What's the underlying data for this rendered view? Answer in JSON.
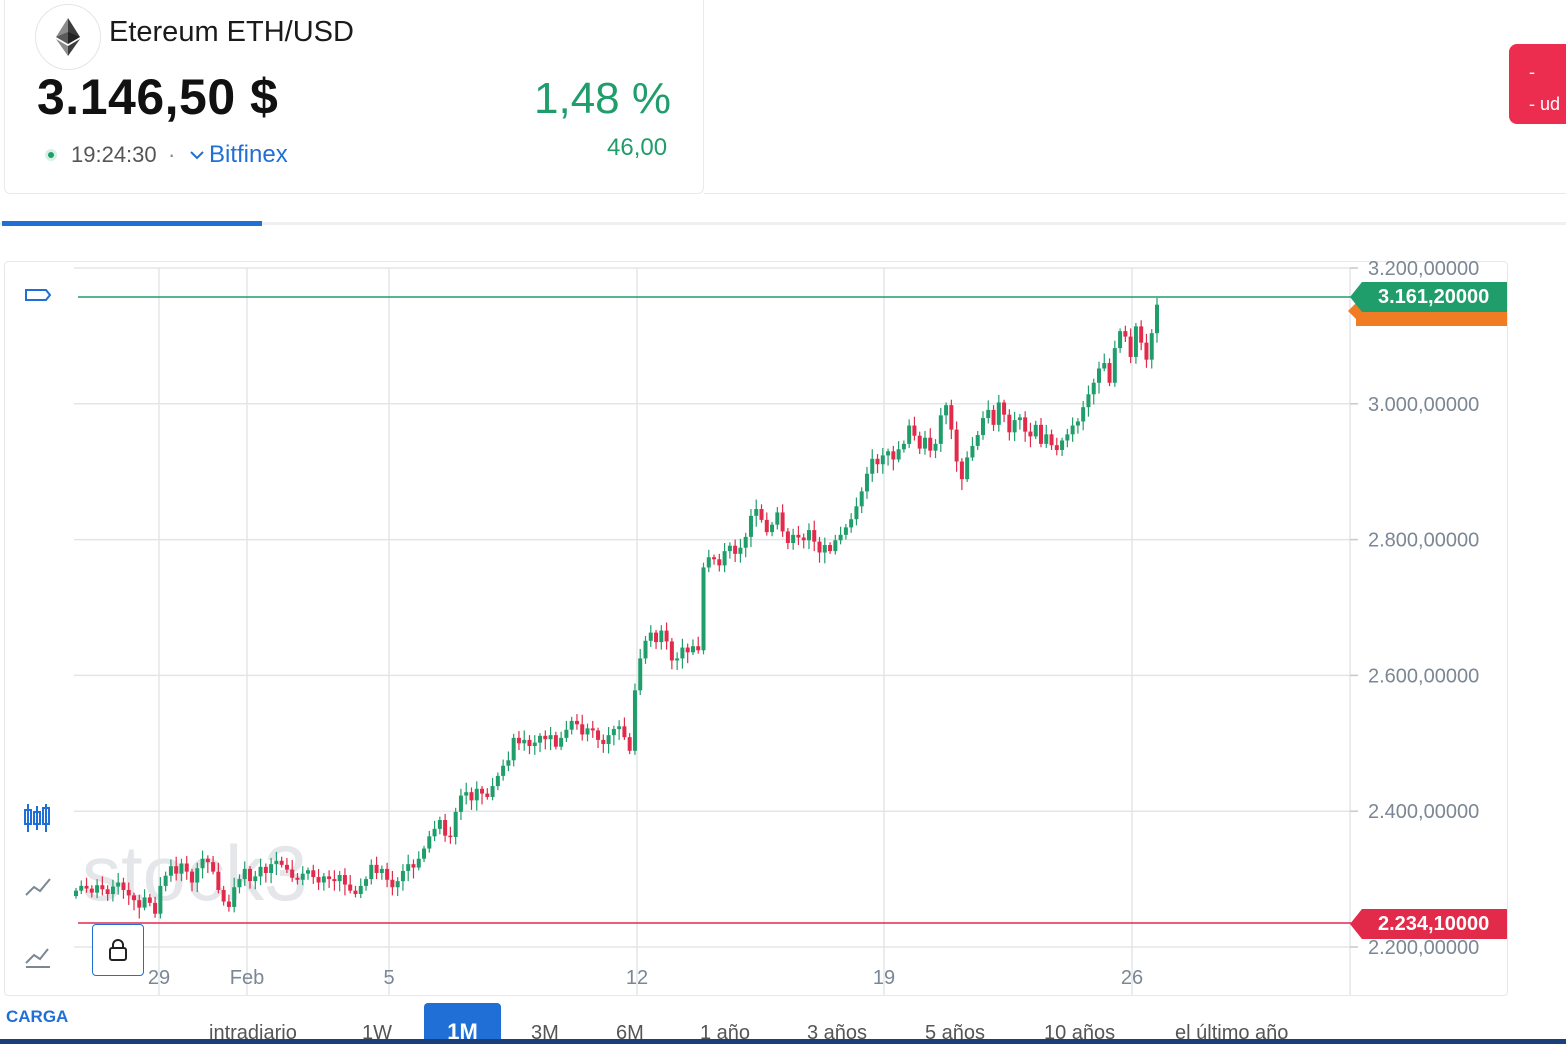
{
  "asset": {
    "name": "Etereum ETH/USD",
    "price": "3.146,50 $",
    "change_pct": "1,48 %",
    "change_abs": "46,00",
    "time": "19:24:30",
    "separator": "·",
    "exchange": "Bitfinex",
    "trade_button_lines": [
      "-",
      "- ud"
    ]
  },
  "colors": {
    "up": "#1f9d6b",
    "down": "#e22a4a",
    "accent": "#1f6fd6",
    "high_line": "#1f9d6b",
    "low_line": "#e22a4a",
    "bid_tag": "#f07d24"
  },
  "sidebar": {
    "carga_label": "CARGA",
    "icons": [
      "rectangle-icon",
      "candlestick-icon",
      "line-chart-icon",
      "area-chart-icon",
      "lock-icon"
    ]
  },
  "chart": {
    "high_label": "3.161,20000",
    "low_label": "2.234,10000",
    "watermark": "stock3",
    "y_ticks": [
      "3.200,00000",
      "3.000,00000",
      "2.800,00000",
      "2.600,00000",
      "2.400,00000",
      "2.200,00000"
    ],
    "x_ticks": [
      "29",
      "Feb",
      "5",
      "12",
      "19",
      "26"
    ]
  },
  "chart_data": {
    "type": "candlestick",
    "title": "",
    "xlabel": "",
    "ylabel": "",
    "ylim": [
      2190,
      3210
    ],
    "grid": true,
    "high": 3161.2,
    "low": 2234.1,
    "x_tick_dates": [
      "29",
      "Feb",
      "5",
      "12",
      "19",
      "26"
    ],
    "y_tick_values": [
      3200,
      3000,
      2800,
      2600,
      2400,
      2200
    ],
    "closes": [
      2283,
      2290,
      2286,
      2280,
      2291,
      2285,
      2278,
      2289,
      2295,
      2284,
      2276,
      2269,
      2258,
      2273,
      2265,
      2249,
      2290,
      2305,
      2319,
      2308,
      2323,
      2311,
      2295,
      2316,
      2330,
      2325,
      2311,
      2284,
      2267,
      2259,
      2288,
      2300,
      2315,
      2297,
      2304,
      2318,
      2309,
      2322,
      2327,
      2321,
      2314,
      2302,
      2299,
      2308,
      2313,
      2303,
      2295,
      2304,
      2300,
      2297,
      2306,
      2292,
      2283,
      2278,
      2290,
      2300,
      2321,
      2309,
      2315,
      2299,
      2288,
      2297,
      2312,
      2322,
      2317,
      2330,
      2345,
      2363,
      2374,
      2387,
      2364,
      2362,
      2399,
      2423,
      2428,
      2416,
      2433,
      2426,
      2421,
      2437,
      2452,
      2467,
      2475,
      2508,
      2500,
      2505,
      2496,
      2501,
      2511,
      2506,
      2512,
      2495,
      2508,
      2520,
      2533,
      2528,
      2513,
      2522,
      2519,
      2505,
      2499,
      2512,
      2521,
      2525,
      2509,
      2489,
      2578,
      2625,
      2651,
      2663,
      2649,
      2666,
      2650,
      2622,
      2625,
      2641,
      2634,
      2643,
      2637,
      2759,
      2774,
      2771,
      2762,
      2783,
      2791,
      2779,
      2788,
      2804,
      2835,
      2845,
      2829,
      2811,
      2822,
      2840,
      2812,
      2795,
      2807,
      2803,
      2799,
      2814,
      2797,
      2781,
      2792,
      2783,
      2799,
      2807,
      2818,
      2830,
      2849,
      2871,
      2897,
      2919,
      2911,
      2924,
      2930,
      2918,
      2933,
      2941,
      2968,
      2953,
      2934,
      2950,
      2931,
      2941,
      2983,
      2998,
      2962,
      2915,
      2889,
      2921,
      2938,
      2954,
      2979,
      2991,
      2969,
      3002,
      2984,
      2958,
      2976,
      2980,
      2959,
      2952,
      2969,
      2941,
      2955,
      2939,
      2932,
      2946,
      2955,
      2968,
      2974,
      2995,
      3014,
      3031,
      3052,
      3060,
      3031,
      3082,
      3107,
      3099,
      3069,
      3114,
      3090,
      3065,
      3104,
      3146
    ]
  },
  "ranges": {
    "items": [
      "intradiario",
      "1W",
      "1M",
      "3M",
      "6M",
      "1 año",
      "3 años",
      "5 años",
      "10 años",
      "el último año"
    ],
    "active": "1M"
  }
}
